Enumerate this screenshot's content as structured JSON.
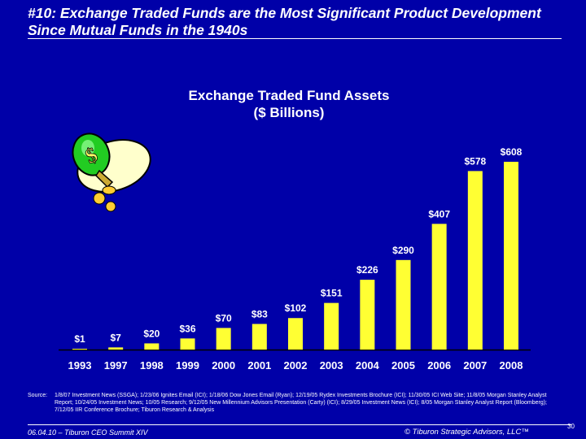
{
  "slide": {
    "title": "#10: Exchange Traded Funds are the Most Significant Product Development Since Mutual Funds in the 1940s",
    "source_label": "Source:",
    "source_text": "1/8/07 Investment News (SSGA); 1/23/06 Ignites Email (ICI); 1/18/06 Dow Jones Email (Ryan); 12/19/05 Rydex Investments Brochure (ICI); 11/30/05 ICI Web Site; 11/8/05 Morgan Stanley Analyst Report; 10/24/05 Investment News; 10/05 Research; 9/12/05 New Millennium Advisors Presentation (Carty) (ICI); 8/29/05 Investment News (ICI); 8/05 Morgan Stanley Analyst Report (Bloomberg); 7/12/05 IIR Conference Brochure; Tiburon Research & Analysis",
    "footer_left": "06.04.10 – Tiburon CEO Summit XIV",
    "footer_right": "© Tiburon Strategic Advisors, LLC™",
    "page_number": "30"
  },
  "colors": {
    "background": "#0000a8",
    "bar": "#ffff33",
    "text": "#ffffff",
    "baseline": "#000000"
  },
  "icons": [
    "money-bag-icon"
  ],
  "chart_data": {
    "type": "bar",
    "title": "Exchange Traded Fund Assets",
    "subtitle": "($ Billions)",
    "categories": [
      "1993",
      "1997",
      "1998",
      "1999",
      "2000",
      "2001",
      "2002",
      "2003",
      "2004",
      "2005",
      "2006",
      "2007",
      "2008"
    ],
    "values": [
      1,
      7,
      20,
      36,
      70,
      83,
      102,
      151,
      226,
      290,
      407,
      578,
      608
    ],
    "data_labels": [
      "$1",
      "$7",
      "$20",
      "$36",
      "$70",
      "$83",
      "$102",
      "$151",
      "$226",
      "$290",
      "$407",
      "$578",
      "$608"
    ],
    "ylim": [
      0,
      608
    ],
    "grid": false,
    "legend": "none"
  }
}
